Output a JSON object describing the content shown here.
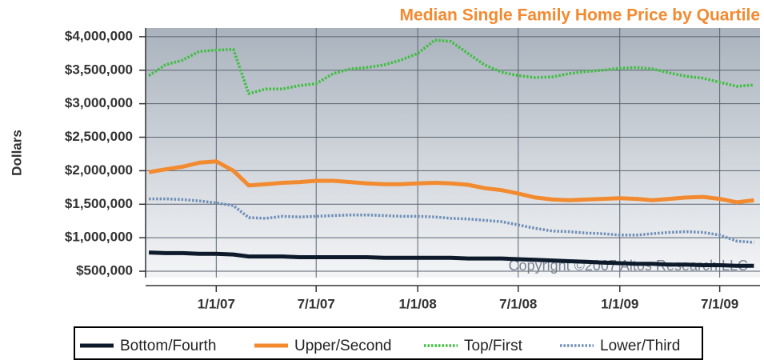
{
  "chart_data": {
    "type": "line",
    "title": "Median Single Family Home Price by Quartile",
    "y_label": "Dollars",
    "annotation": "Copyright ©2007 Altos Research LLC",
    "x": [
      "2006-09-01",
      "2006-10-01",
      "2006-11-01",
      "2006-12-01",
      "2007-01-01",
      "2007-02-01",
      "2007-03-01",
      "2007-04-01",
      "2007-05-01",
      "2007-06-01",
      "2007-07-01",
      "2007-08-01",
      "2007-09-01",
      "2007-10-01",
      "2007-11-01",
      "2007-12-01",
      "2008-01-01",
      "2008-02-01",
      "2008-03-01",
      "2008-04-01",
      "2008-05-01",
      "2008-06-01",
      "2008-07-01",
      "2008-08-01",
      "2008-09-01",
      "2008-10-01",
      "2008-11-01",
      "2008-12-01",
      "2009-01-01",
      "2009-02-01",
      "2009-03-01",
      "2009-04-01",
      "2009-05-01",
      "2009-06-01",
      "2009-07-01",
      "2009-08-01",
      "2009-09-01"
    ],
    "xlim": [
      "2006-08-26",
      "2009-09-12"
    ],
    "xticks": [
      {
        "value": "2007-01-01",
        "label": "1/1/07"
      },
      {
        "value": "2007-07-01",
        "label": "7/1/07"
      },
      {
        "value": "2008-01-01",
        "label": "1/1/08"
      },
      {
        "value": "2008-07-01",
        "label": "7/1/08"
      },
      {
        "value": "2009-01-01",
        "label": "1/1/09"
      },
      {
        "value": "2009-07-01",
        "label": "7/1/09"
      }
    ],
    "ylim": [
      405000,
      4130000
    ],
    "yticks": [
      {
        "value": 500000,
        "label": "$500,000"
      },
      {
        "value": 1000000,
        "label": "$1,000,000"
      },
      {
        "value": 1500000,
        "label": "$1,500,000"
      },
      {
        "value": 2000000,
        "label": "$2,000,000"
      },
      {
        "value": 2500000,
        "label": "$2,500,000"
      },
      {
        "value": 3000000,
        "label": "$3,000,000"
      },
      {
        "value": 3500000,
        "label": "$3,500,000"
      },
      {
        "value": 4000000,
        "label": "$4,000,000"
      }
    ],
    "grid": true,
    "legend": "bottom",
    "series": [
      {
        "name": "Bottom/Fourth",
        "color": "#0d1a2b",
        "line_style": "solid",
        "values": [
          780000,
          770000,
          770000,
          760000,
          760000,
          750000,
          720000,
          720000,
          720000,
          710000,
          710000,
          710000,
          710000,
          710000,
          700000,
          700000,
          700000,
          700000,
          700000,
          690000,
          690000,
          690000,
          680000,
          670000,
          660000,
          650000,
          640000,
          630000,
          620000,
          610000,
          610000,
          600000,
          600000,
          590000,
          590000,
          580000,
          580000
        ]
      },
      {
        "name": "Upper/Second",
        "color": "#f28a30",
        "line_style": "solid",
        "values": [
          1980000,
          2020000,
          2060000,
          2120000,
          2140000,
          2000000,
          1780000,
          1800000,
          1820000,
          1830000,
          1850000,
          1850000,
          1830000,
          1810000,
          1800000,
          1800000,
          1810000,
          1820000,
          1810000,
          1790000,
          1740000,
          1710000,
          1660000,
          1600000,
          1570000,
          1560000,
          1570000,
          1580000,
          1590000,
          1580000,
          1560000,
          1580000,
          1600000,
          1610000,
          1580000,
          1530000,
          1560000
        ]
      },
      {
        "name": "Top/First",
        "color": "#3fbf3f",
        "line_style": "dotted",
        "values": [
          3420000,
          3580000,
          3650000,
          3780000,
          3800000,
          3810000,
          3150000,
          3220000,
          3220000,
          3270000,
          3300000,
          3450000,
          3520000,
          3540000,
          3580000,
          3650000,
          3750000,
          3950000,
          3930000,
          3750000,
          3580000,
          3470000,
          3420000,
          3390000,
          3400000,
          3450000,
          3480000,
          3500000,
          3530000,
          3540000,
          3520000,
          3460000,
          3410000,
          3380000,
          3320000,
          3260000,
          3280000
        ]
      },
      {
        "name": "Lower/Third",
        "color": "#6f8fb8",
        "line_style": "dotted",
        "values": [
          1580000,
          1580000,
          1570000,
          1550000,
          1520000,
          1480000,
          1300000,
          1290000,
          1320000,
          1310000,
          1320000,
          1330000,
          1340000,
          1340000,
          1330000,
          1320000,
          1320000,
          1310000,
          1290000,
          1280000,
          1260000,
          1240000,
          1190000,
          1140000,
          1100000,
          1090000,
          1070000,
          1060000,
          1040000,
          1040000,
          1060000,
          1080000,
          1090000,
          1080000,
          1040000,
          950000,
          930000
        ]
      }
    ]
  }
}
